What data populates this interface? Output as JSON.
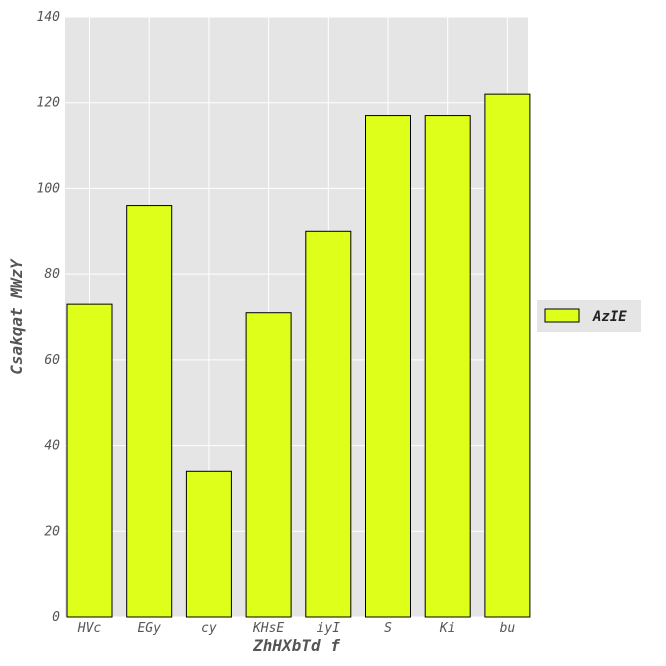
{
  "chart_data": {
    "type": "bar",
    "categories": [
      "HVc",
      "EGy",
      "cy",
      "KHsE",
      "iyI",
      "S",
      "Ki",
      "bu"
    ],
    "series": [
      {
        "name": "AzIE",
        "values": [
          73,
          96,
          34,
          71,
          90,
          117,
          117,
          122
        ]
      }
    ],
    "xlabel": "ZhHXbTd f",
    "ylabel": "Csakqat MWzY",
    "ylim": [
      0,
      140
    ],
    "yticks": [
      0,
      20,
      40,
      60,
      80,
      100,
      120,
      140
    ],
    "grid": true,
    "legend_position": "right",
    "colors": {
      "bar_fill": "#ddff1a",
      "bar_edge": "#000000",
      "plot_background": "#e5e5e5",
      "grid": "#ffffff"
    }
  }
}
